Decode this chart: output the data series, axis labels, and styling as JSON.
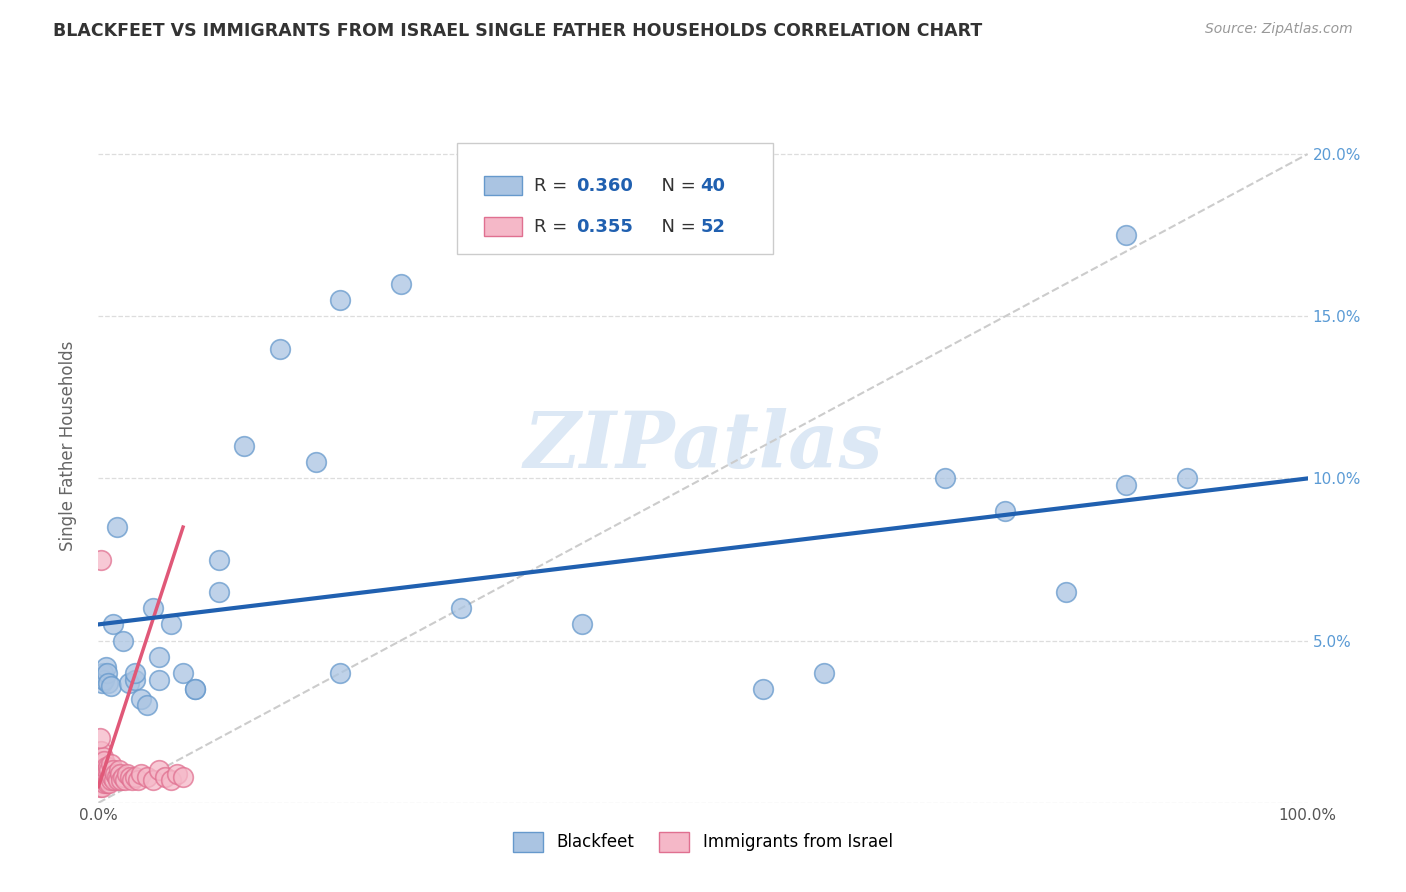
{
  "title": "BLACKFEET VS IMMIGRANTS FROM ISRAEL SINGLE FATHER HOUSEHOLDS CORRELATION CHART",
  "source": "Source: ZipAtlas.com",
  "ylabel": "Single Father Households",
  "xlim": [
    0,
    1.0
  ],
  "ylim": [
    0,
    0.22
  ],
  "xticks": [
    0.0,
    0.1,
    0.2,
    0.3,
    0.4,
    0.5,
    0.6,
    0.7,
    0.8,
    0.9,
    1.0
  ],
  "yticks": [
    0.0,
    0.05,
    0.1,
    0.15,
    0.2
  ],
  "xticklabels": [
    "0.0%",
    "",
    "",
    "",
    "",
    "",
    "",
    "",
    "",
    "",
    "100.0%"
  ],
  "yticklabels_right": [
    "",
    "5.0%",
    "10.0%",
    "15.0%",
    "20.0%"
  ],
  "blackfeet_color": "#aac4e2",
  "blackfeet_edge": "#6699cc",
  "israel_color": "#f5b8c8",
  "israel_edge": "#e07090",
  "trendline_blue_color": "#2060b0",
  "trendline_pink_color": "#e05878",
  "diag_color": "#cccccc",
  "watermark_color": "#dce8f5",
  "grid_color": "#dddddd",
  "blackfeet_x": [
    0.003,
    0.004,
    0.005,
    0.006,
    0.007,
    0.008,
    0.01,
    0.012,
    0.015,
    0.02,
    0.025,
    0.03,
    0.035,
    0.04,
    0.045,
    0.05,
    0.06,
    0.07,
    0.08,
    0.1,
    0.12,
    0.15,
    0.18,
    0.2,
    0.25,
    0.3,
    0.4,
    0.55,
    0.7,
    0.75,
    0.8,
    0.85,
    0.9,
    0.03,
    0.05,
    0.08,
    0.1,
    0.2,
    0.6,
    0.85
  ],
  "blackfeet_y": [
    0.037,
    0.04,
    0.038,
    0.042,
    0.04,
    0.037,
    0.036,
    0.055,
    0.085,
    0.05,
    0.037,
    0.038,
    0.032,
    0.03,
    0.06,
    0.045,
    0.055,
    0.04,
    0.035,
    0.075,
    0.11,
    0.14,
    0.105,
    0.155,
    0.16,
    0.06,
    0.055,
    0.035,
    0.1,
    0.09,
    0.065,
    0.175,
    0.1,
    0.04,
    0.038,
    0.035,
    0.065,
    0.04,
    0.04,
    0.098
  ],
  "israel_x": [
    0.001,
    0.001,
    0.001,
    0.002,
    0.002,
    0.002,
    0.002,
    0.003,
    0.003,
    0.003,
    0.004,
    0.004,
    0.004,
    0.005,
    0.005,
    0.005,
    0.006,
    0.006,
    0.007,
    0.007,
    0.008,
    0.008,
    0.009,
    0.009,
    0.01,
    0.01,
    0.011,
    0.012,
    0.013,
    0.014,
    0.015,
    0.016,
    0.017,
    0.018,
    0.019,
    0.02,
    0.022,
    0.024,
    0.026,
    0.028,
    0.03,
    0.033,
    0.035,
    0.04,
    0.045,
    0.05,
    0.055,
    0.06,
    0.065,
    0.07,
    0.001,
    0.002
  ],
  "israel_y": [
    0.005,
    0.008,
    0.012,
    0.007,
    0.01,
    0.013,
    0.016,
    0.005,
    0.009,
    0.012,
    0.007,
    0.01,
    0.014,
    0.006,
    0.009,
    0.013,
    0.007,
    0.011,
    0.006,
    0.01,
    0.007,
    0.011,
    0.006,
    0.01,
    0.007,
    0.012,
    0.008,
    0.01,
    0.007,
    0.009,
    0.008,
    0.007,
    0.01,
    0.009,
    0.007,
    0.008,
    0.007,
    0.009,
    0.008,
    0.007,
    0.008,
    0.007,
    0.009,
    0.008,
    0.007,
    0.01,
    0.008,
    0.007,
    0.009,
    0.008,
    0.02,
    0.075
  ],
  "bf_trend_x0": 0.0,
  "bf_trend_y0": 0.055,
  "bf_trend_x1": 1.0,
  "bf_trend_y1": 0.1,
  "isr_trend_x0": 0.0,
  "isr_trend_y0": 0.005,
  "isr_trend_x1": 0.07,
  "isr_trend_y1": 0.085
}
